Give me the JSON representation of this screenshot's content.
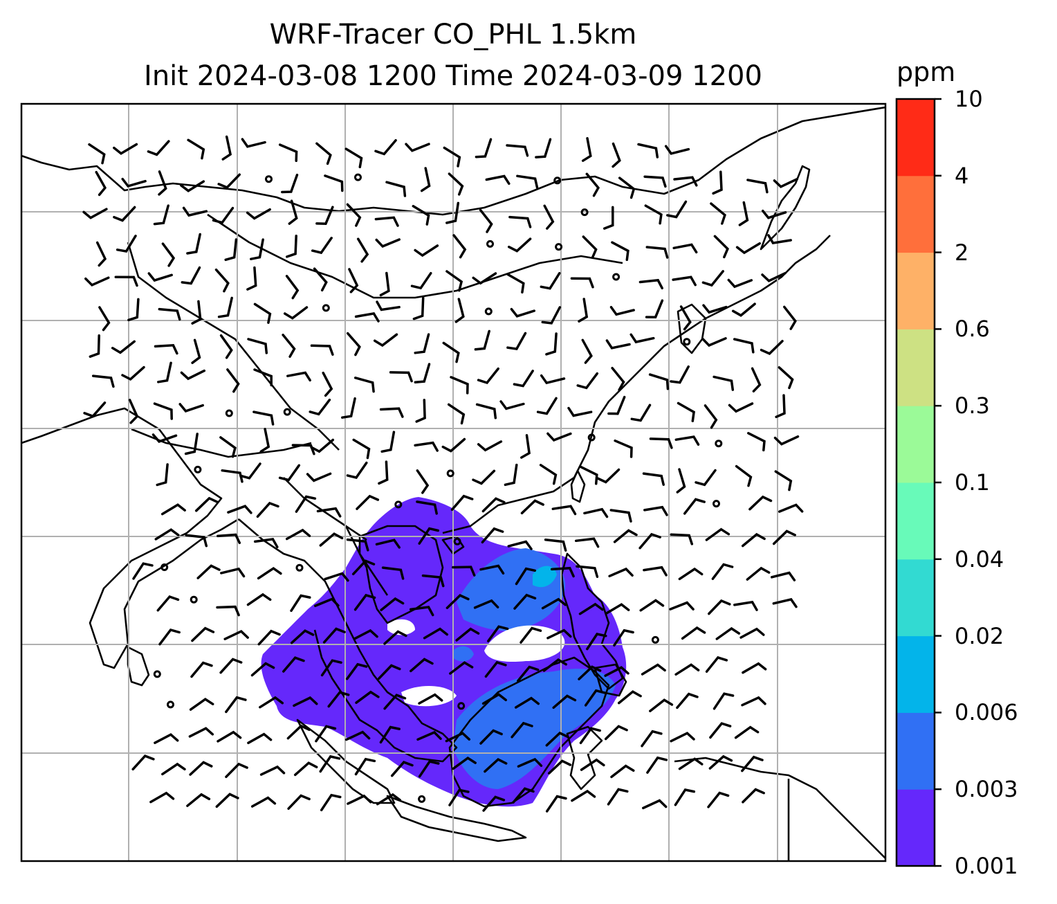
{
  "title": {
    "line1": "WRF-Tracer CO_PHL 1.5km",
    "line2": "Init 2024-03-08 1200 Time 2024-03-09 1200"
  },
  "colorbar": {
    "unit": "ppm",
    "levels": [
      "0.001",
      "0.003",
      "0.006",
      "0.02",
      "0.04",
      "0.1",
      "0.3",
      "0.6",
      "2",
      "4",
      "10"
    ],
    "colors": [
      "#6528fb",
      "#3070f4",
      "#03b4ea",
      "#32dad2",
      "#68fab9",
      "#9bfa98",
      "#cde183",
      "#feb167",
      "#ff6f3b",
      "#ff2b17"
    ]
  },
  "map": {
    "land_outline_color": "#000000",
    "gridline_color": "#b0b0b0",
    "wind_barb_color": "#000000",
    "plume_levels_shown": [
      "0.001",
      "0.003",
      "0.006"
    ]
  }
}
